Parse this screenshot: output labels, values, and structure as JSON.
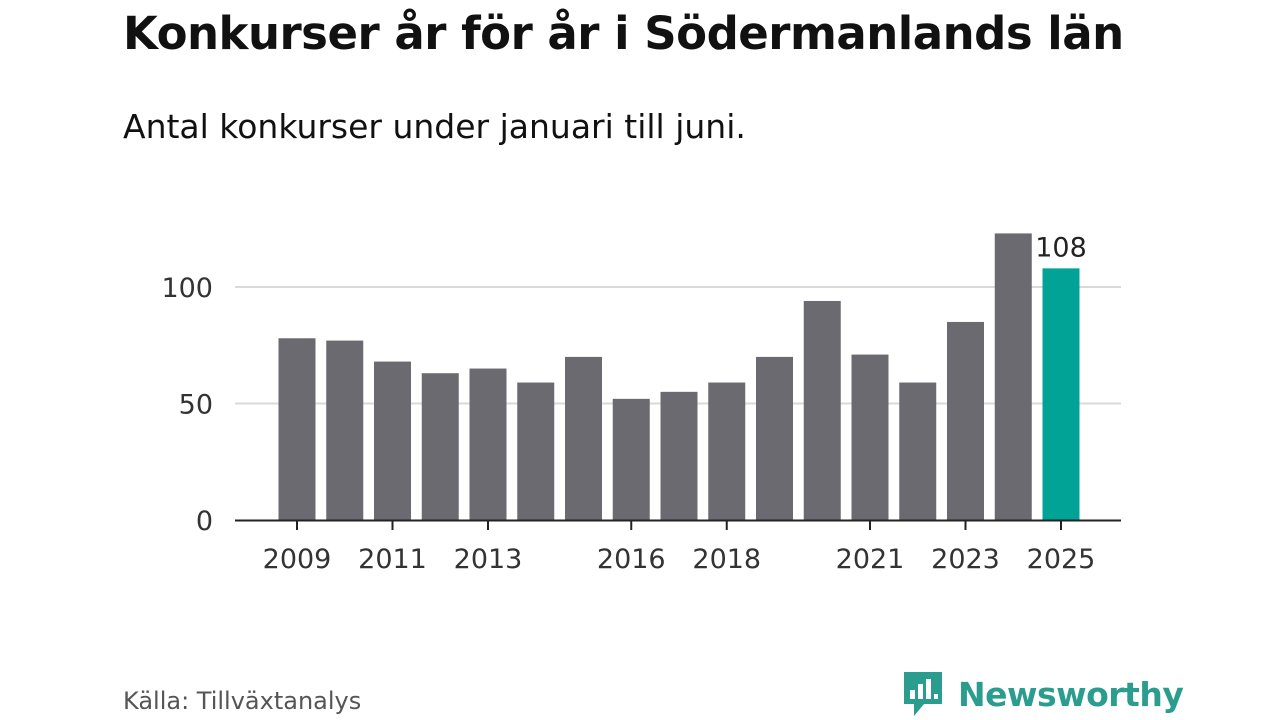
{
  "header": {
    "title": "Konkurser år för år i Södermanlands län",
    "subtitle": "Antal konkurser under januari till juni."
  },
  "footer": {
    "source": "Källa: Tillväxtanalys",
    "brand": "Newsworthy"
  },
  "colors": {
    "bar": "#6b6a70",
    "highlight": "#00a396",
    "grid": "#d9d9d9",
    "axis": "#222222",
    "brand": "#2a9d8f"
  },
  "chart_data": {
    "type": "bar",
    "categories": [
      "2009",
      "2010",
      "2011",
      "2012",
      "2013",
      "2014",
      "2015",
      "2016",
      "2017",
      "2018",
      "2019",
      "2020",
      "2021",
      "2022",
      "2023",
      "2024",
      "2025"
    ],
    "values": [
      78,
      77,
      68,
      63,
      65,
      59,
      70,
      52,
      55,
      59,
      70,
      94,
      71,
      59,
      85,
      123,
      108
    ],
    "x_tick_labels": [
      "2009",
      "2011",
      "2013",
      "2016",
      "2018",
      "2021",
      "2023",
      "2025"
    ],
    "y_ticks": [
      "0",
      "50",
      "100"
    ],
    "ylim": [
      0,
      130
    ],
    "highlight_index": 16,
    "value_labels": [
      {
        "index": 16,
        "text": "108"
      }
    ],
    "grid": true,
    "legend": false
  }
}
